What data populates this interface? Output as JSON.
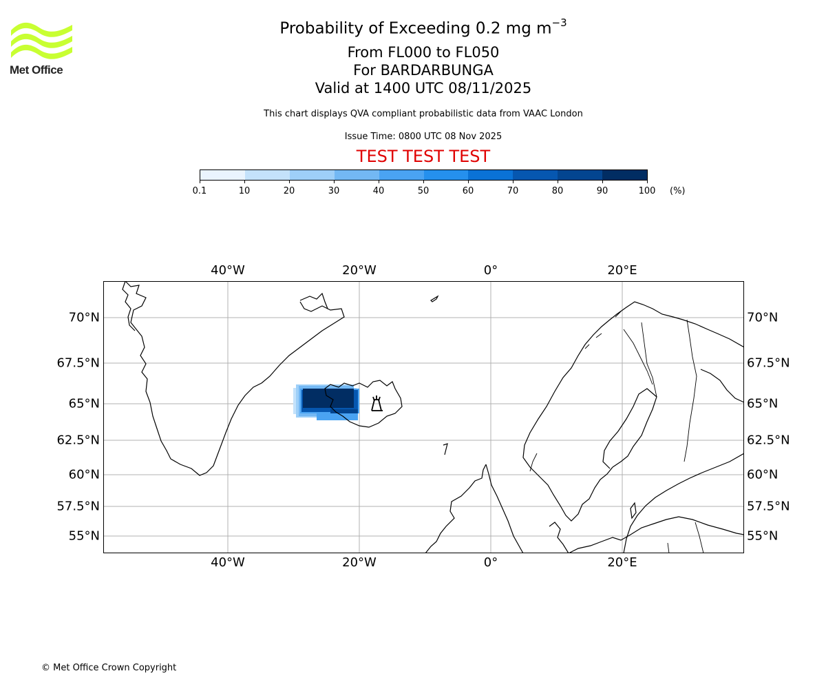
{
  "logo": {
    "icon": "met-office-wave-logo",
    "text": "Met Office",
    "color": "#c8ff32"
  },
  "title": {
    "main": "Probability of Exceeding 0.2 mg m",
    "superscript": "−3"
  },
  "subtitle": [
    "From FL000 to FL050",
    "For BARDARBUNGA",
    "Valid at 1400 UTC 08/11/2025"
  ],
  "disclaimer": "This chart displays QVA compliant probabilistic data from VAAC London",
  "issue_time": "Issue Time: 0800 UTC 08 Nov 2025",
  "test_banner": "TEST TEST TEST",
  "test_color": "#e00000",
  "colorbar": {
    "ticks": [
      "0.1",
      "10",
      "20",
      "30",
      "40",
      "50",
      "60",
      "70",
      "80",
      "90",
      "100"
    ],
    "unit": "(%)",
    "colors": [
      "#eaf4fe",
      "#c4e2fb",
      "#9ecff8",
      "#73b8f4",
      "#4aa3f2",
      "#2590ee",
      "#0a72d6",
      "#0657b0",
      "#034590",
      "#012d63"
    ]
  },
  "map": {
    "lon_labels": [
      "40°W",
      "20°W",
      "0°",
      "20°E"
    ],
    "lat_labels": [
      "70°N",
      "67.5°N",
      "65°N",
      "62.5°N",
      "60°N",
      "57.5°N",
      "55°N"
    ],
    "volcano": "volcano-marker-icon",
    "grid": true
  },
  "copyright": "© Met Office Crown Copyright"
}
